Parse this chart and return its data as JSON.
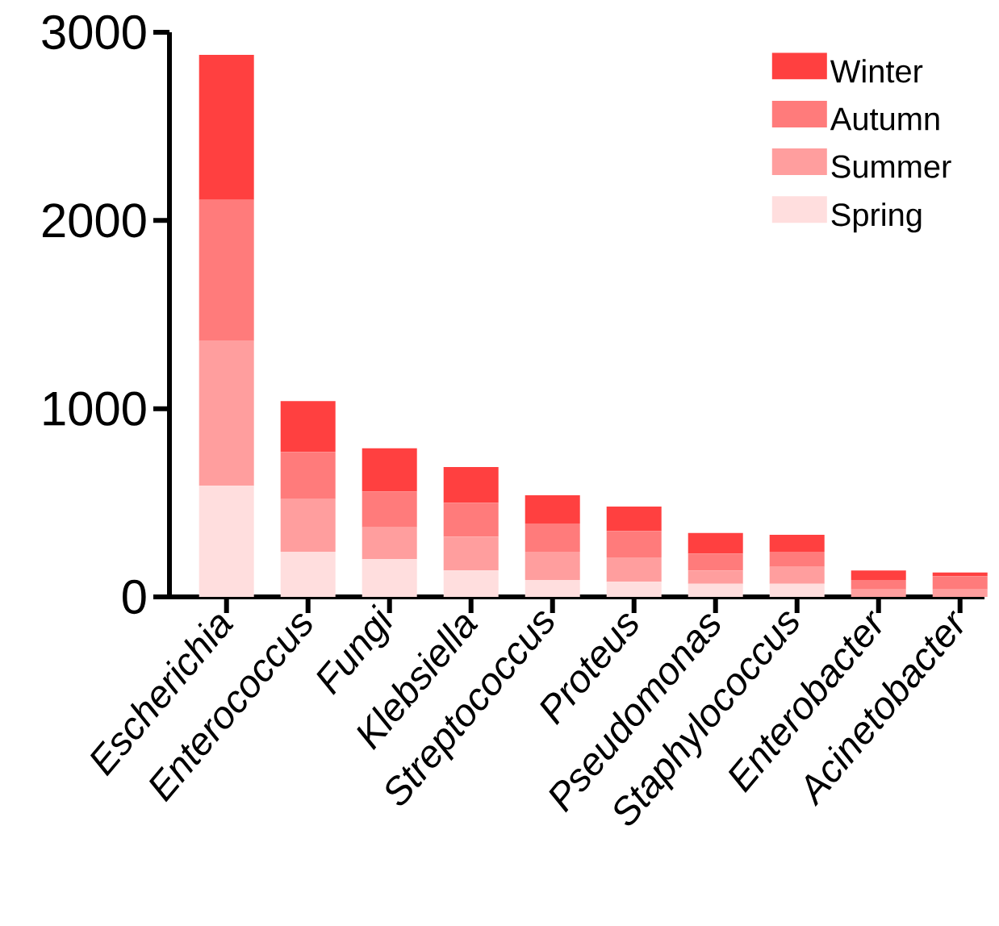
{
  "chart_data": {
    "type": "bar",
    "stacked": true,
    "categories": [
      "Escherichia",
      "Enterococcus",
      "Fungi",
      "Klebsiella",
      "Streptococcus",
      "Proteus",
      "Pseudomonas",
      "Staphylococcus",
      "Enterobacter",
      "Acinetobacter"
    ],
    "series": [
      {
        "name": "Spring",
        "color": "#ffdede",
        "values": [
          590,
          240,
          200,
          140,
          90,
          80,
          70,
          70,
          null,
          null
        ]
      },
      {
        "name": "Summer",
        "color": "#ff9e9e",
        "values": [
          770,
          280,
          170,
          180,
          150,
          130,
          70,
          90,
          40,
          40
        ]
      },
      {
        "name": "Autumn",
        "color": "#ff7b7b",
        "values": [
          750,
          250,
          190,
          180,
          150,
          140,
          90,
          80,
          50,
          70
        ]
      },
      {
        "name": "Winter",
        "color": "#ff4040",
        "values": [
          770,
          270,
          230,
          190,
          150,
          130,
          110,
          90,
          50,
          20
        ]
      }
    ],
    "ylim": [
      0,
      3000
    ],
    "yticks": [
      0,
      1000,
      2000,
      3000
    ],
    "legend": "top right"
  }
}
